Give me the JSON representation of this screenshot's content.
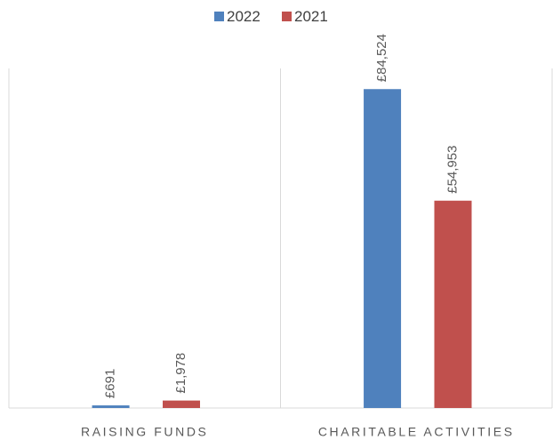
{
  "chart_data": {
    "type": "bar",
    "categories": [
      "RAISING FUNDS",
      "CHARITABLE ACTIVITIES"
    ],
    "series": [
      {
        "name": "2022",
        "color": "#4f81bd",
        "values": [
          691,
          84524
        ],
        "value_labels": [
          "£691",
          "£84,524"
        ]
      },
      {
        "name": "2021",
        "color": "#c0504d",
        "values": [
          1978,
          54953
        ],
        "value_labels": [
          "£1,978",
          "£54,953"
        ]
      }
    ],
    "ylim": [
      0,
      90000
    ],
    "legend": "top"
  }
}
